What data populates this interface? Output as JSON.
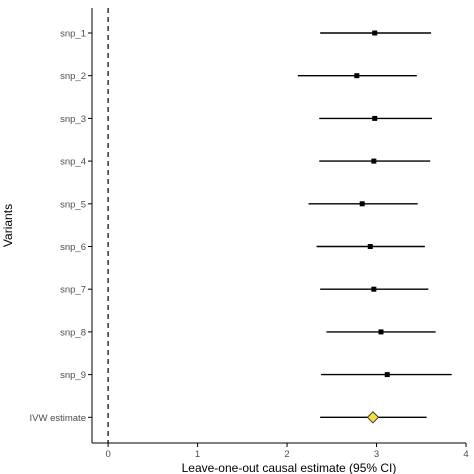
{
  "chart_data": {
    "type": "forest",
    "xlabel": "Leave-one-out causal estimate (95% CI)",
    "ylabel": "Variants",
    "xlim": [
      -0.18,
      4.0
    ],
    "xticks": [
      0,
      1,
      2,
      3,
      4
    ],
    "reference_line": {
      "x": 0,
      "style": "dashed"
    },
    "rows": [
      {
        "label": "snp_1",
        "estimate": 2.98,
        "lower": 2.37,
        "upper": 3.61,
        "marker": "square"
      },
      {
        "label": "snp_2",
        "estimate": 2.78,
        "lower": 2.12,
        "upper": 3.45,
        "marker": "square"
      },
      {
        "label": "snp_3",
        "estimate": 2.98,
        "lower": 2.36,
        "upper": 3.62,
        "marker": "square"
      },
      {
        "label": "snp_4",
        "estimate": 2.97,
        "lower": 2.36,
        "upper": 3.6,
        "marker": "square"
      },
      {
        "label": "snp_5",
        "estimate": 2.84,
        "lower": 2.24,
        "upper": 3.46,
        "marker": "square"
      },
      {
        "label": "snp_6",
        "estimate": 2.93,
        "lower": 2.33,
        "upper": 3.54,
        "marker": "square"
      },
      {
        "label": "snp_7",
        "estimate": 2.97,
        "lower": 2.37,
        "upper": 3.58,
        "marker": "square"
      },
      {
        "label": "snp_8",
        "estimate": 3.05,
        "lower": 2.44,
        "upper": 3.66,
        "marker": "square"
      },
      {
        "label": "snp_9",
        "estimate": 3.12,
        "lower": 2.38,
        "upper": 3.84,
        "marker": "square"
      },
      {
        "label": "IVW estimate",
        "estimate": 2.96,
        "lower": 2.37,
        "upper": 3.56,
        "marker": "diamond"
      }
    ],
    "colors": {
      "line": "#000000",
      "point": "#000000",
      "ivw_fill": "#f5e03c",
      "ivw_stroke": "#333333",
      "axis": "#000000",
      "tick_text": "#4d4d4d"
    }
  }
}
